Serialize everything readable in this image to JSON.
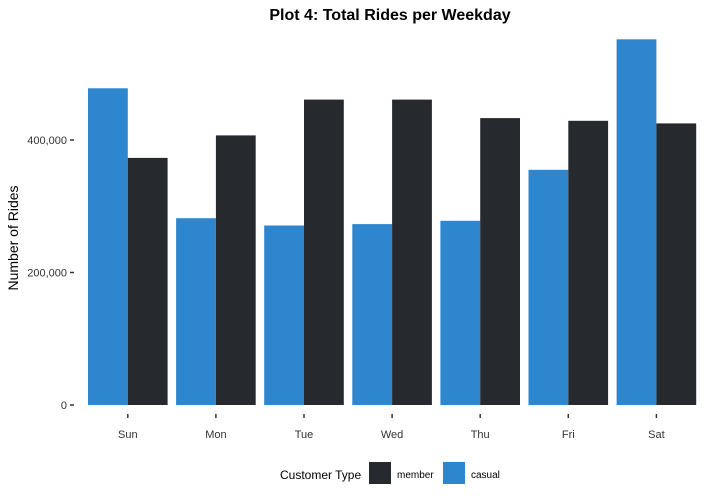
{
  "chart_data": {
    "type": "bar",
    "title": "Plot 4: Total Rides per Weekday",
    "xlabel": "",
    "ylabel": "Number of Rides",
    "categories": [
      "Sun",
      "Mon",
      "Tue",
      "Wed",
      "Thu",
      "Fri",
      "Sat"
    ],
    "series": [
      {
        "name": "casual",
        "color": "#2e86cf",
        "values": [
          478000,
          282000,
          271000,
          273000,
          278000,
          355000,
          552000
        ]
      },
      {
        "name": "member",
        "color": "#262a2e",
        "values": [
          373000,
          407000,
          461000,
          461000,
          433000,
          429000,
          425000
        ]
      }
    ],
    "ylim": [
      0,
      560000
    ],
    "yticks": [
      {
        "value": 0,
        "label": "0"
      },
      {
        "value": 200000,
        "label": "200,000"
      },
      {
        "value": 400000,
        "label": "400,000"
      }
    ],
    "grid": false,
    "legend": {
      "title": "Customer Type",
      "placement": "bottom",
      "order": [
        "member",
        "casual"
      ]
    }
  }
}
